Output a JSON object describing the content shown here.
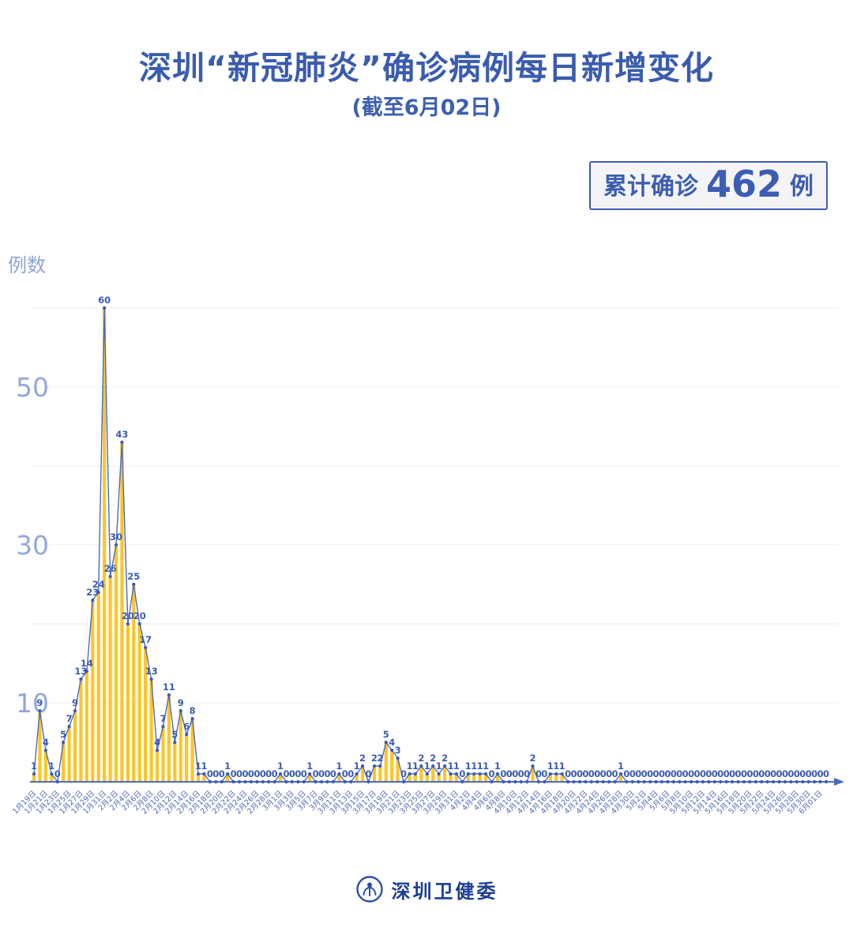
{
  "title": "深圳“新冠肺炎”确诊病例每日新增变化",
  "subtitle": "(截至6月02日)",
  "summary_badge": {
    "label": "累计确诊",
    "value": "462",
    "unit": "例"
  },
  "y_axis_title": "例数",
  "footer": {
    "org_name": "深圳卫健委"
  },
  "chart_data": {
    "type": "bar",
    "title": "深圳“新冠肺炎”确诊病例每日新增变化",
    "subtitle": "截至6月02日",
    "ylabel": "例数",
    "ylim": [
      0,
      60
    ],
    "y_ticks_labeled": [
      10,
      30,
      50
    ],
    "grid_step": 10,
    "x_tick_every": 2,
    "legend": "none",
    "cumulative_total": 462,
    "colors": {
      "bar": "#ffc524",
      "line": "#4a6bc2",
      "marker": "#3a5bb8",
      "value_label": "#3b5cad",
      "axis": "#4a6bc2",
      "grid": "#ececec",
      "x_tick_label": "#5169b5",
      "y_tick_label": "#93a8da"
    },
    "dates": [
      "1月19日",
      "1月20日",
      "1月21日",
      "1月22日",
      "1月23日",
      "1月24日",
      "1月25日",
      "1月26日",
      "1月27日",
      "1月28日",
      "1月29日",
      "1月30日",
      "1月31日",
      "2月1日",
      "2月2日",
      "2月3日",
      "2月4日",
      "2月5日",
      "2月6日",
      "2月7日",
      "2月8日",
      "2月9日",
      "2月10日",
      "2月11日",
      "2月12日",
      "2月13日",
      "2月14日",
      "2月15日",
      "2月16日",
      "2月17日",
      "2月18日",
      "2月19日",
      "2月20日",
      "2月21日",
      "2月22日",
      "2月23日",
      "2月24日",
      "2月25日",
      "2月26日",
      "2月27日",
      "2月28日",
      "2月29日",
      "3月1日",
      "3月2日",
      "3月3日",
      "3月4日",
      "3月5日",
      "3月6日",
      "3月7日",
      "3月8日",
      "3月9日",
      "3月10日",
      "3月11日",
      "3月12日",
      "3月13日",
      "3月14日",
      "3月15日",
      "3月16日",
      "3月17日",
      "3月18日",
      "3月19日",
      "3月20日",
      "3月21日",
      "3月22日",
      "3月23日",
      "3月24日",
      "3月25日",
      "3月26日",
      "3月27日",
      "3月28日",
      "3月29日",
      "3月30日",
      "3月31日",
      "4月1日",
      "4月2日",
      "4月3日",
      "4月4日",
      "4月5日",
      "4月6日",
      "4月7日",
      "4月8日",
      "4月9日",
      "4月10日",
      "4月11日",
      "4月12日",
      "4月13日",
      "4月14日",
      "4月15日",
      "4月16日",
      "4月17日",
      "4月18日",
      "4月19日",
      "4月20日",
      "4月21日",
      "4月22日",
      "4月23日",
      "4月24日",
      "4月25日",
      "4月26日",
      "4月27日",
      "4月28日",
      "4月29日",
      "4月30日",
      "5月1日",
      "5月2日",
      "5月3日",
      "5月4日",
      "5月5日",
      "5月6日",
      "5月7日",
      "5月8日",
      "5月9日",
      "5月10日",
      "5月11日",
      "5月12日",
      "5月13日",
      "5月14日",
      "5月15日",
      "5月16日",
      "5月17日",
      "5月18日",
      "5月19日",
      "5月20日",
      "5月21日",
      "5月22日",
      "5月23日",
      "5月24日",
      "5月25日",
      "5月26日",
      "5月27日",
      "5月28日",
      "5月29日",
      "5月30日",
      "5月31日",
      "6月01日",
      "6月02日"
    ],
    "values": [
      1,
      9,
      4,
      1,
      0,
      5,
      7,
      9,
      13,
      14,
      23,
      24,
      60,
      26,
      30,
      43,
      20,
      25,
      20,
      17,
      13,
      4,
      7,
      11,
      5,
      9,
      6,
      8,
      1,
      1,
      0,
      0,
      0,
      1,
      0,
      0,
      0,
      0,
      0,
      0,
      0,
      0,
      1,
      0,
      0,
      0,
      0,
      1,
      0,
      0,
      0,
      0,
      1,
      0,
      0,
      1,
      2,
      0,
      2,
      2,
      5,
      4,
      3,
      0,
      1,
      1,
      2,
      1,
      2,
      1,
      2,
      1,
      1,
      0,
      1,
      1,
      1,
      1,
      0,
      1,
      0,
      0,
      0,
      0,
      0,
      2,
      0,
      0,
      1,
      1,
      1,
      0,
      0,
      0,
      0,
      0,
      0,
      0,
      0,
      0,
      1,
      0,
      0,
      0,
      0,
      0,
      0,
      0,
      0,
      0,
      0,
      0,
      0,
      0,
      0,
      0,
      0,
      0,
      0,
      0,
      0,
      0,
      0,
      0,
      0,
      0,
      0,
      0,
      0,
      0,
      0,
      0,
      0,
      0,
      0,
      0
    ]
  }
}
